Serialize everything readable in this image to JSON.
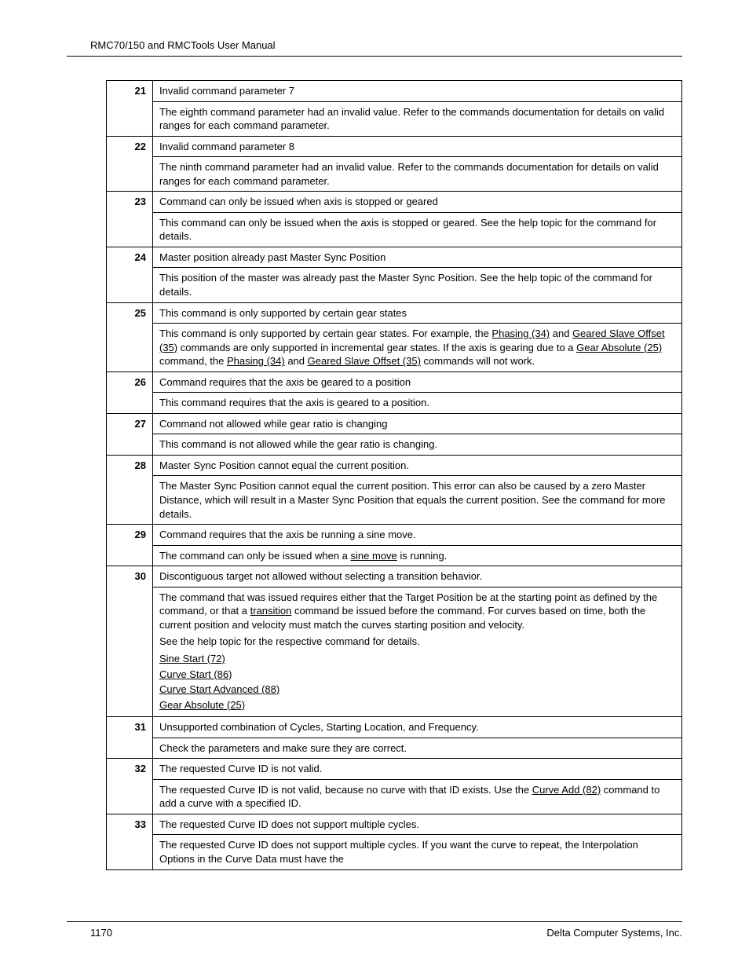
{
  "header": "RMC70/150 and RMCTools User Manual",
  "footer": {
    "page": "1170",
    "company": "Delta Computer Systems, Inc."
  },
  "rows": [
    {
      "code": "21",
      "title": "Invalid command parameter 7",
      "desc": "The eighth command parameter had an invalid value. Refer to the commands documentation for details on valid ranges for each command parameter."
    },
    {
      "code": "22",
      "title": "Invalid command parameter 8",
      "desc": "The ninth command parameter had an invalid value. Refer to the commands documentation for details on valid ranges for each command parameter."
    },
    {
      "code": "23",
      "title": "Command can only be issued when axis is stopped or geared",
      "desc": "This command can only be issued when the axis is stopped or geared. See the help topic for the command for details."
    },
    {
      "code": "24",
      "title": "Master position already past Master Sync Position",
      "desc": "This position of the master was already past the Master Sync Position. See the help topic of the command for details."
    },
    {
      "code": "25",
      "title": "This command is only supported by certain gear states",
      "desc_html": true,
      "desc_parts": [
        {
          "t": "This command is only supported by certain gear states. For example, the "
        },
        {
          "t": "Phasing (34)",
          "link": true
        },
        {
          "t": " and "
        },
        {
          "t": "Geared Slave Offset (35)",
          "link": true
        },
        {
          "t": " commands are only supported in incremental gear states. If the axis is gearing due to a "
        },
        {
          "t": "Gear Absolute (25)",
          "link": true
        },
        {
          "t": " command, the "
        },
        {
          "t": "Phasing (34)",
          "link": true
        },
        {
          "t": " and "
        },
        {
          "t": "Geared Slave Offset (35)",
          "link": true
        },
        {
          "t": " commands will not work."
        }
      ]
    },
    {
      "code": "26",
      "title": "Command requires that the axis be geared to a position",
      "desc": "This command requires that the axis is geared to a position."
    },
    {
      "code": "27",
      "title": "Command not allowed while gear ratio is changing",
      "desc": "This command is not allowed while the gear ratio is changing."
    },
    {
      "code": "28",
      "title": "Master Sync Position cannot equal the current position.",
      "desc": "The Master Sync Position cannot equal the current position. This error can also be caused by a zero Master Distance, which will result in a Master Sync Position that equals the current position. See the command for more details."
    },
    {
      "code": "29",
      "title": "Command requires that the axis be running a sine move.",
      "desc_html": true,
      "desc_parts": [
        {
          "t": "The command can only be issued when a "
        },
        {
          "t": "sine move",
          "link": true
        },
        {
          "t": " is running."
        }
      ]
    },
    {
      "code": "30",
      "title": "Discontiguous target not allowed without selecting a transition behavior.",
      "desc_html": true,
      "extra_class": "extra-bottom",
      "desc_parts": [
        {
          "t": "The command that was issued requires either that the Target Position be at the starting point as defined by the command, or that a "
        },
        {
          "t": "transition",
          "link": true
        },
        {
          "t": " command be issued before the command. For curves based on time, both the current position and velocity must match the curves starting position and velocity."
        }
      ],
      "extra_lines": [
        "See the help topic for the respective command for details."
      ],
      "link_list": [
        "Sine Start (72)",
        "Curve Start (86)",
        "Curve Start Advanced (88)",
        "Gear Absolute (25)"
      ]
    },
    {
      "code": "31",
      "title": "Unsupported combination of Cycles, Starting Location, and Frequency.",
      "desc": "Check the parameters and make sure they are correct."
    },
    {
      "code": "32",
      "title": "The requested Curve ID is not valid.",
      "desc_html": true,
      "desc_parts": [
        {
          "t": "The requested Curve ID is not valid, because no curve with that ID exists. Use the "
        },
        {
          "t": "Curve Add (82)",
          "link": true
        },
        {
          "t": " command to add a curve with a specified ID."
        }
      ]
    },
    {
      "code": "33",
      "title": "The requested Curve ID does not support multiple cycles.",
      "desc": "The requested Curve ID does not support multiple cycles. If you want the curve to repeat, the Interpolation Options in the Curve Data must have the"
    }
  ]
}
